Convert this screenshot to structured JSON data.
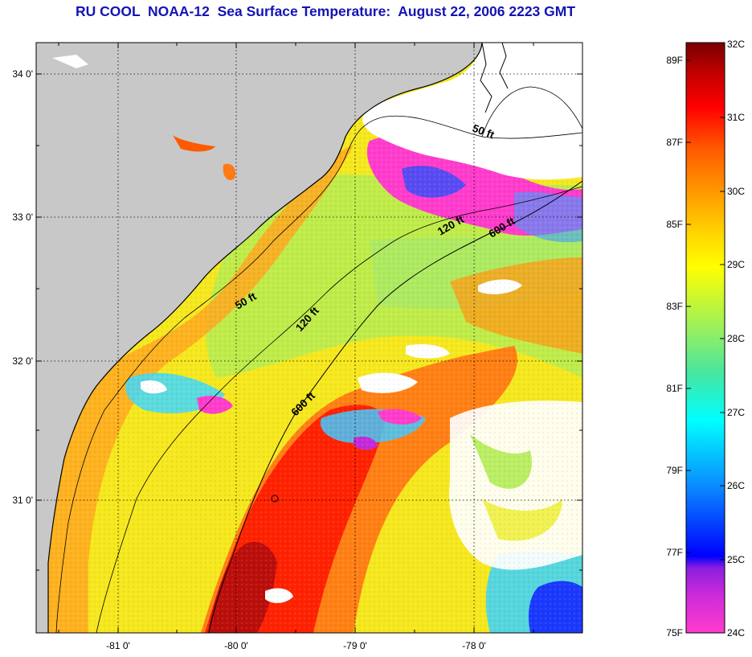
{
  "title": "RU COOL  NOAA-12  Sea Surface Temperature:  August 22, 2006 2223 GMT",
  "map": {
    "latitude_labels": [
      "34 0'",
      "33 0'",
      "32 0'",
      "31 0'"
    ],
    "longitude_labels": [
      "-81 0'",
      "-80 0'",
      "-79 0'",
      "-78 0'"
    ],
    "isobath_labels": [
      {
        "name": "50-ft-inner",
        "text": "50 ft"
      },
      {
        "name": "120-ft-inner",
        "text": "120 ft"
      },
      {
        "name": "600-ft-inner",
        "text": "600 ft"
      },
      {
        "name": "50-ft-upper",
        "text": "50 ft"
      },
      {
        "name": "120-ft-upper",
        "text": "120 ft"
      },
      {
        "name": "600-ft-upper",
        "text": "600 ft"
      }
    ]
  },
  "colorbar": {
    "fahrenheit_labels": [
      "89F",
      "87F",
      "85F",
      "83F",
      "81F",
      "79F",
      "77F",
      "75F"
    ],
    "celsius_labels": [
      "32C",
      "31C",
      "30C",
      "29C",
      "28C",
      "27C",
      "26C",
      "25C",
      "24C"
    ],
    "colors": [
      "#ff3ccc",
      "#8c1ee0",
      "#0000ff",
      "#0a8cff",
      "#00ffff",
      "#46e6a0",
      "#9ef05a",
      "#ffff00",
      "#ffd200",
      "#ff9600",
      "#ff5a00",
      "#ff0000",
      "#c00000",
      "#780000"
    ]
  }
}
